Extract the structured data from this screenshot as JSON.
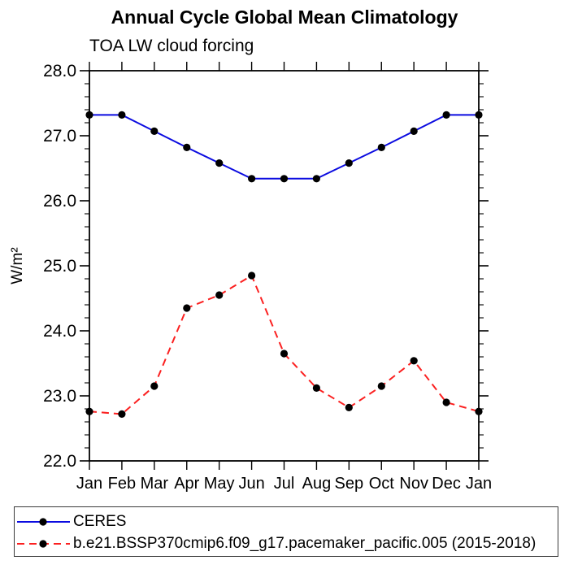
{
  "chart_data": {
    "type": "line",
    "title": "Annual Cycle Global Mean Climatology",
    "subtitle": "TOA LW cloud forcing",
    "ylabel": "W/m²",
    "xlabel": "",
    "categories": [
      "Jan",
      "Feb",
      "Mar",
      "Apr",
      "May",
      "Jun",
      "Jul",
      "Aug",
      "Sep",
      "Oct",
      "Nov",
      "Dec",
      "Jan"
    ],
    "ylim": [
      22.0,
      28.0
    ],
    "y_major_step": 1.0,
    "y_minor_step": 0.2,
    "y_tick_labels": [
      "22.0",
      "23.0",
      "24.0",
      "25.0",
      "26.0",
      "27.0",
      "28.0"
    ],
    "grid": false,
    "legend_position": "bottom",
    "axis_color": "#000000",
    "series": [
      {
        "name": "CERES",
        "color": "#0b0be0",
        "line_style": "solid",
        "marker": "filled-circle",
        "marker_color": "#000000",
        "values": [
          27.32,
          27.32,
          27.07,
          26.82,
          26.58,
          26.34,
          26.34,
          26.34,
          26.58,
          26.82,
          27.07,
          27.32,
          27.32
        ]
      },
      {
        "name": "b.e21.BSSP370cmip6.f09_g17.pacemaker_pacific.005 (2015-2018)",
        "color": "#fb2020",
        "line_style": "dashed",
        "marker": "filled-circle",
        "marker_color": "#000000",
        "values": [
          22.76,
          22.72,
          23.15,
          24.35,
          24.55,
          24.85,
          23.65,
          23.12,
          22.82,
          23.15,
          23.54,
          22.9,
          22.76
        ]
      }
    ]
  }
}
